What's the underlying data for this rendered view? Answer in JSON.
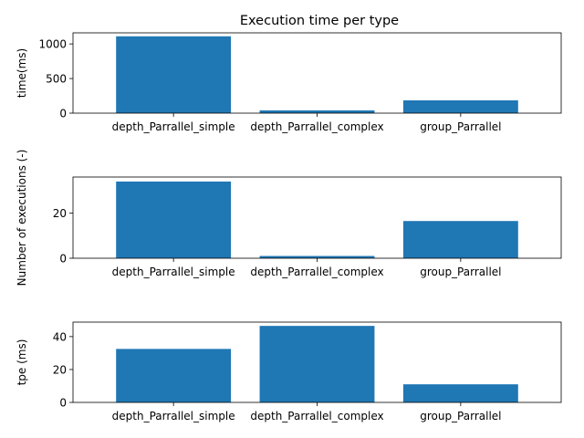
{
  "chart_data": [
    {
      "type": "bar",
      "title": "Execution time per type",
      "xlabel": "",
      "ylabel": "time(ms)",
      "categories": [
        "depth_Parrallel_simple",
        "depth_Parrallel_complex",
        "group_Parrallel"
      ],
      "values": [
        1110,
        40,
        185
      ],
      "ylim": [
        0,
        1160
      ],
      "yticks": [
        0,
        500,
        1000
      ],
      "color": "#1f77b4",
      "grid": false
    },
    {
      "type": "bar",
      "title": "",
      "xlabel": "",
      "ylabel": "Number of executions (-)",
      "categories": [
        "depth_Parrallel_simple",
        "depth_Parrallel_complex",
        "group_Parrallel"
      ],
      "values": [
        34,
        1,
        16.5
      ],
      "ylim": [
        0,
        36
      ],
      "yticks": [
        0,
        20
      ],
      "color": "#1f77b4",
      "grid": false
    },
    {
      "type": "bar",
      "title": "",
      "xlabel": "",
      "ylabel": "tpe (ms)",
      "categories": [
        "depth_Parrallel_simple",
        "depth_Parrallel_complex",
        "group_Parrallel"
      ],
      "values": [
        32.5,
        46.5,
        11
      ],
      "ylim": [
        0,
        48.8
      ],
      "yticks": [
        0,
        20,
        40
      ],
      "color": "#1f77b4",
      "grid": false
    }
  ]
}
